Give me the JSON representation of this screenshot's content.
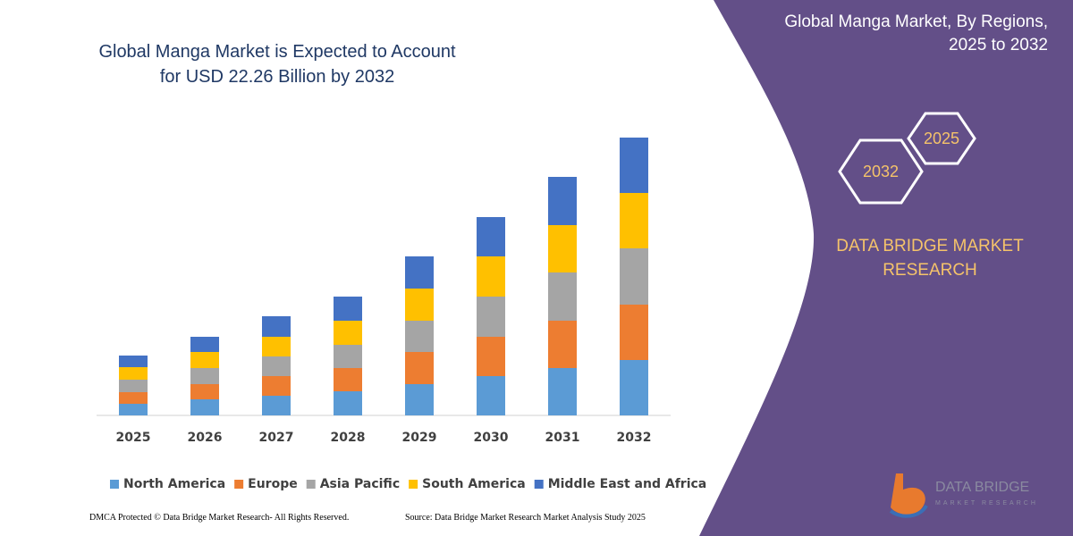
{
  "chart_data": {
    "type": "stacked-bar",
    "title": "Global Manga Market is Expected to Account for USD 22.26 Billion by 2032",
    "categories": [
      "2025",
      "2026",
      "2027",
      "2028",
      "2029",
      "2030",
      "2031",
      "2032"
    ],
    "series": [
      {
        "name": "North America",
        "color": "#5b9bd5",
        "values": [
          13,
          18,
          22,
          27,
          35,
          44,
          53,
          62
        ]
      },
      {
        "name": "Europe",
        "color": "#ed7d31",
        "values": [
          13,
          17,
          22,
          26,
          36,
          44,
          53,
          62
        ]
      },
      {
        "name": "Asia Pacific",
        "color": "#a5a5a5",
        "values": [
          14,
          18,
          22,
          26,
          35,
          45,
          54,
          63
        ]
      },
      {
        "name": "South America",
        "color": "#ffc000",
        "values": [
          14,
          18,
          22,
          27,
          36,
          45,
          53,
          62
        ]
      },
      {
        "name": "Middle East and Africa",
        "color": "#4472c4",
        "values": [
          13,
          17,
          23,
          27,
          36,
          44,
          54,
          62
        ]
      }
    ],
    "legend": "bottom"
  },
  "panel": {
    "title": "Global Manga Market, By Regions, 2025 to 2032",
    "hex_small": "2025",
    "hex_large": "2032",
    "brand": "DATA BRIDGE MARKET RESEARCH",
    "logo_top": "DATA BRIDGE",
    "logo_bottom": "MARKET RESEARCH"
  },
  "footer": {
    "left": "DMCA Protected © Data Bridge Market Research-  All Rights Reserved.",
    "right": "Source: Data Bridge Market Research  Market Analysis Study 2025"
  }
}
